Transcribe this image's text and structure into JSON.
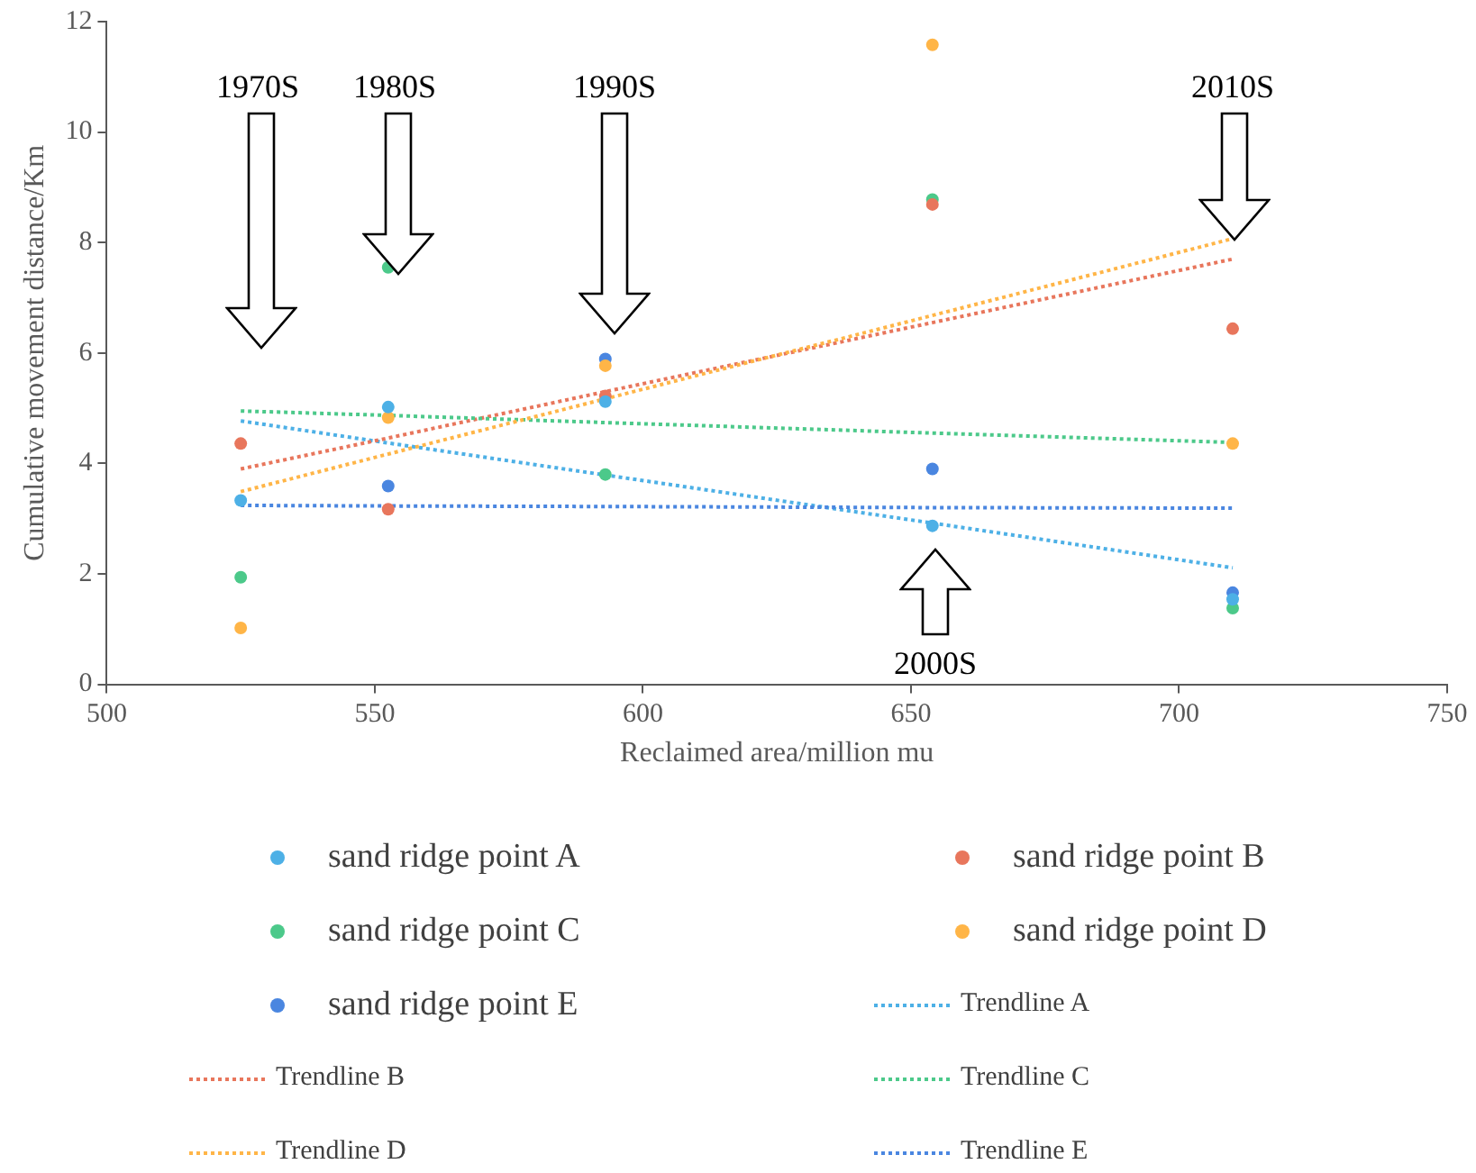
{
  "chart_data": {
    "type": "scatter",
    "xlabel": "Reclaimed area/million mu",
    "ylabel": "Cumulative movement distance/Km",
    "x": [
      525,
      552.5,
      593,
      654,
      710
    ],
    "xlim": [
      500,
      750
    ],
    "xticks": [
      500,
      550,
      600,
      650,
      700,
      750
    ],
    "ylim": [
      0,
      12
    ],
    "yticks": [
      0,
      2,
      4,
      6,
      8,
      10,
      12
    ],
    "grid": false,
    "legend": "bottom",
    "marker": "circle",
    "series": [
      {
        "name": "sand ridge point A",
        "color": "#4db0e6",
        "values": [
          3.33,
          5.02,
          5.12,
          2.87,
          1.54
        ]
      },
      {
        "name": "sand ridge point B",
        "color": "#e8765c",
        "values": [
          4.36,
          3.17,
          5.22,
          8.69,
          6.44
        ]
      },
      {
        "name": "sand ridge point C",
        "color": "#4cc98a",
        "values": [
          1.94,
          7.55,
          3.8,
          8.78,
          1.38
        ]
      },
      {
        "name": "sand ridge point D",
        "color": "#ffb547",
        "values": [
          1.02,
          4.83,
          5.77,
          11.58,
          4.36
        ]
      },
      {
        "name": "sand ridge point E",
        "color": "#4a86e0",
        "values": [
          null,
          3.59,
          5.89,
          3.9,
          1.66
        ]
      },
      {
        "name": "Trendline A",
        "type": "line",
        "marker": "none",
        "line_style": "dotted",
        "color": "#4db0e6",
        "values": [
          4.77,
          4.37,
          3.79,
          2.92,
          2.11
        ]
      },
      {
        "name": "Trendline B",
        "type": "line",
        "marker": "none",
        "line_style": "dotted",
        "color": "#e8765c",
        "values": [
          3.9,
          4.46,
          5.3,
          6.55,
          7.7
        ]
      },
      {
        "name": "Trendline C",
        "type": "line",
        "marker": "none",
        "line_style": "dotted",
        "color": "#4cc98a",
        "values": [
          4.95,
          4.87,
          4.74,
          4.55,
          4.38
        ]
      },
      {
        "name": "Trendline D",
        "type": "line",
        "marker": "none",
        "line_style": "dotted",
        "color": "#ffb547",
        "values": [
          3.49,
          4.17,
          5.17,
          6.68,
          8.07
        ]
      },
      {
        "name": "Trendline E",
        "type": "line",
        "marker": "none",
        "line_style": "dotted",
        "color": "#4a86e0",
        "values": [
          3.24,
          3.23,
          3.22,
          3.2,
          3.19
        ]
      }
    ],
    "annotations": [
      "1970S",
      "1980S",
      "1990S",
      "2000S",
      "2010S"
    ]
  }
}
